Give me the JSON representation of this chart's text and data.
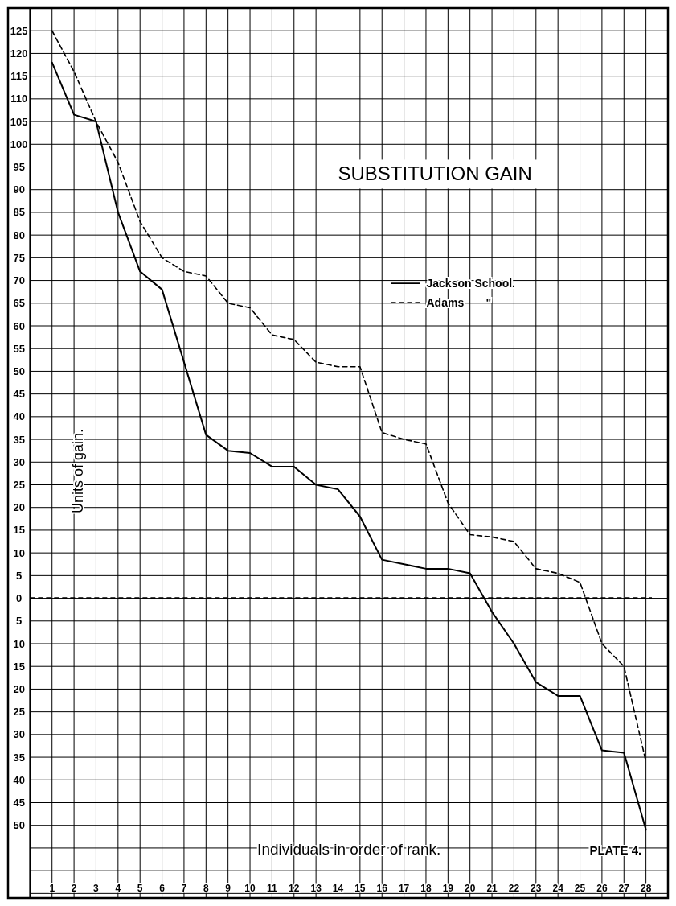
{
  "chart_data": {
    "type": "line",
    "title": "SUBSTITUTION GAIN",
    "xlabel": "Individuals in order of rank.",
    "ylabel": "Units of gain.",
    "annotations": [
      "PLATE 4."
    ],
    "x": [
      1,
      2,
      3,
      4,
      5,
      6,
      7,
      8,
      9,
      10,
      11,
      12,
      13,
      14,
      15,
      16,
      17,
      18,
      19,
      20,
      21,
      22,
      23,
      24,
      25,
      26,
      27,
      28
    ],
    "series": [
      {
        "name": "Jackson School.",
        "color": "#000000",
        "line_style": "solid",
        "values": [
          118,
          106.5,
          105,
          85,
          72,
          68,
          52,
          36,
          32.5,
          32,
          29,
          29,
          25,
          24,
          18,
          8.5,
          7.5,
          6.5,
          6.5,
          5.5,
          -3,
          -10,
          -18.5,
          -21.5,
          -21.5,
          -33.5,
          -34,
          -51
        ]
      },
      {
        "name": "Adams       \"",
        "color": "#000000",
        "line_style": "dashed",
        "values": [
          125,
          116,
          105,
          96,
          83,
          75,
          72,
          71,
          65,
          64,
          58,
          57,
          52,
          51,
          51,
          36.5,
          35,
          34,
          21,
          14,
          13.5,
          12.5,
          6.5,
          5.5,
          3.5,
          -10,
          -15,
          -36
        ]
      }
    ],
    "xlim": [
      -1,
      29
    ],
    "xticks": [
      {
        "value": 0,
        "label": null
      },
      1,
      2,
      3,
      4,
      5,
      6,
      7,
      8,
      9,
      10,
      11,
      12,
      13,
      14,
      15,
      16,
      17,
      18,
      19,
      20,
      21,
      22,
      23,
      24,
      25,
      26,
      27,
      28
    ],
    "ylim": [
      -66,
      130
    ],
    "yticks": [
      {
        "value": 130,
        "label": null
      },
      125,
      120,
      115,
      110,
      105,
      100,
      95,
      90,
      85,
      80,
      75,
      70,
      65,
      60,
      55,
      50,
      45,
      40,
      35,
      30,
      25,
      20,
      15,
      10,
      5,
      0,
      {
        "value": -5,
        "label": "5"
      },
      {
        "value": -10,
        "label": "10"
      },
      {
        "value": -15,
        "label": "15"
      },
      {
        "value": -20,
        "label": "20"
      },
      {
        "value": -25,
        "label": "25"
      },
      {
        "value": -30,
        "label": "30"
      },
      {
        "value": -35,
        "label": "35"
      },
      {
        "value": -40,
        "label": "40"
      },
      {
        "value": -45,
        "label": "45"
      },
      {
        "value": -50,
        "label": "50"
      },
      {
        "value": -55,
        "label": null
      },
      {
        "value": -60,
        "label": null
      },
      {
        "value": -65,
        "label": null
      }
    ],
    "ref_lines": [
      {
        "axis": "y",
        "value": 0,
        "line_style": "dashed",
        "color": "#000000"
      }
    ],
    "grid": true,
    "legend": "right",
    "marker": "none"
  }
}
